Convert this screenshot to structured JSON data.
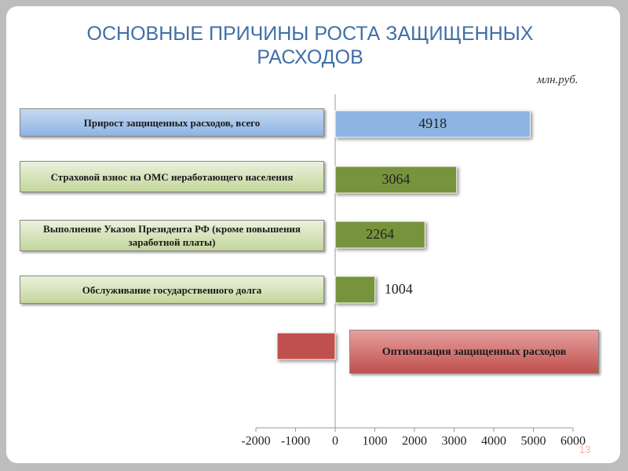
{
  "title": "ОСНОВНЫЕ ПРИЧИНЫ РОСТА ЗАЩИЩЕННЫХ РАСХОДОВ",
  "unit": "млн.руб.",
  "page_number": "13",
  "chart_data": {
    "type": "barh",
    "categories": [
      "Прирост защищенных расходов, всего",
      "Страховой взнос на ОМС неработающего населения",
      "Выполнение Указов Президента РФ (кроме повышения заработной платы)",
      "Обслуживание государственного долга",
      "Оптимизация защищенных расходов"
    ],
    "values": [
      4918,
      3064,
      2264,
      1004,
      -1466
    ],
    "value_labels": [
      "4918",
      "3064",
      "2264",
      "1004",
      null
    ],
    "colors": [
      "#8db4e2",
      "#77933c",
      "#77933c",
      "#77933c",
      "#c0504d"
    ],
    "xlim": [
      -2000,
      6000
    ],
    "xticks": [
      -2000,
      -1000,
      0,
      1000,
      2000,
      3000,
      4000,
      5000,
      6000
    ]
  }
}
